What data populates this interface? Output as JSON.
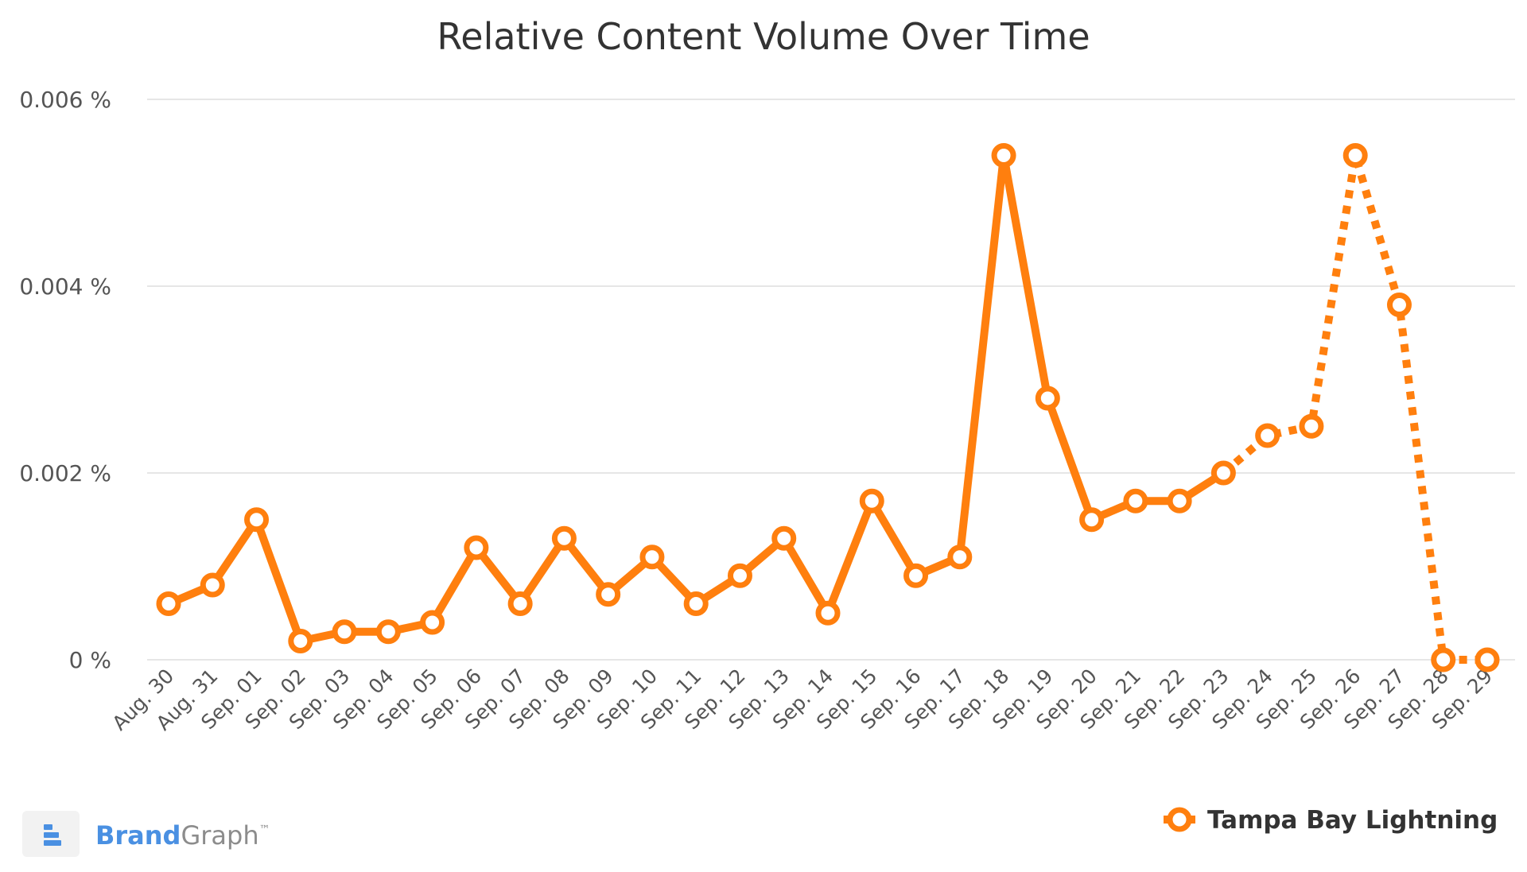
{
  "chart_data": {
    "type": "line",
    "title": "Relative Content Volume Over Time",
    "xlabel": "",
    "ylabel": "",
    "categories": [
      "Aug. 30",
      "Aug. 31",
      "Sep. 01",
      "Sep. 02",
      "Sep. 03",
      "Sep. 04",
      "Sep. 05",
      "Sep. 06",
      "Sep. 07",
      "Sep. 08",
      "Sep. 09",
      "Sep. 10",
      "Sep. 11",
      "Sep. 12",
      "Sep. 13",
      "Sep. 14",
      "Sep. 15",
      "Sep. 16",
      "Sep. 17",
      "Sep. 18",
      "Sep. 19",
      "Sep. 20",
      "Sep. 21",
      "Sep. 22",
      "Sep. 23",
      "Sep. 24",
      "Sep. 25",
      "Sep. 26",
      "Sep. 27",
      "Sep. 28",
      "Sep. 29"
    ],
    "series": [
      {
        "name": "Tampa Bay Lightning",
        "color": "#ff7f0e",
        "values": [
          0.0006,
          0.0008,
          0.0015,
          0.0002,
          0.0003,
          0.0003,
          0.0004,
          0.0012,
          0.0006,
          0.0013,
          0.0007,
          0.0011,
          0.0006,
          0.0009,
          0.0013,
          0.0005,
          0.0017,
          0.0009,
          0.0011,
          0.0054,
          0.0028,
          0.0015,
          0.0017,
          0.0017,
          0.002,
          0.0024,
          0.0025,
          0.0054,
          0.0038,
          0.0,
          0.0
        ],
        "solid_through_index": 24
      }
    ],
    "ylim": [
      0,
      0.006
    ],
    "yticks": [
      0,
      0.002,
      0.004,
      0.006
    ],
    "ytick_labels": [
      "0 %",
      "0.002 %",
      "0.004 %",
      "0.006 %"
    ],
    "grid": true,
    "legend_position": "bottom-right"
  },
  "branding": {
    "brand_part1": "Brand",
    "brand_part2": "Graph",
    "trademark": "™",
    "color_blue": "#4a90e2",
    "color_gray": "#8c8c8c",
    "logo_icon": "bars-icon"
  }
}
